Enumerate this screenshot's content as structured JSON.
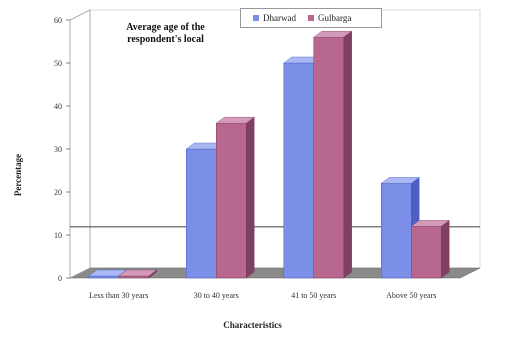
{
  "chart_data": {
    "type": "bar",
    "title": "Average age of the respondent's local",
    "xlabel": "Characteristics",
    "ylabel": "Percentage",
    "categories": [
      "Less than 30 years",
      "30 to 40 years",
      "41 to 50 years",
      "Above 50 years"
    ],
    "series": [
      {
        "name": "Dharwad",
        "color": "#7b8fe8",
        "values": [
          0,
          30,
          50,
          22
        ]
      },
      {
        "name": "Gulbarga",
        "color": "#b8678f",
        "values": [
          0,
          36,
          56,
          12
        ]
      }
    ],
    "ylim": [
      0,
      60
    ],
    "yticks": [
      0,
      10,
      20,
      30,
      40,
      50,
      60
    ],
    "grid": false,
    "legend": "top"
  }
}
